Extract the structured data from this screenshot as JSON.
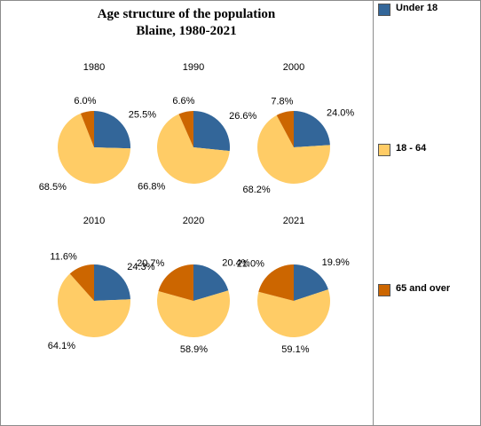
{
  "chart_data": {
    "type": "pie",
    "title": "Age structure of the population",
    "subtitle": "Blaine, 1980-2021",
    "categories": [
      "Under 18",
      "18 - 64",
      "65 and over"
    ],
    "colors": [
      "#336699",
      "#ffcc66",
      "#cc6600"
    ],
    "legend_position": "right",
    "pies": [
      {
        "label": "1980",
        "values": [
          25.5,
          68.5,
          6.0
        ],
        "value_labels": [
          "25.5%",
          "68.5%",
          "6.0%"
        ]
      },
      {
        "label": "1990",
        "values": [
          26.6,
          66.8,
          6.6
        ],
        "value_labels": [
          "26.6%",
          "66.8%",
          "6.6%"
        ]
      },
      {
        "label": "2000",
        "values": [
          24.0,
          68.2,
          7.8
        ],
        "value_labels": [
          "24.0%",
          "68.2%",
          "7.8%"
        ]
      },
      {
        "label": "2010",
        "values": [
          24.3,
          64.1,
          11.6
        ],
        "value_labels": [
          "24.3%",
          "64.1%",
          "11.6%"
        ]
      },
      {
        "label": "2020",
        "values": [
          20.4,
          58.9,
          20.7
        ],
        "value_labels": [
          "20.4%",
          "58.9%",
          "20.7%"
        ]
      },
      {
        "label": "2021",
        "values": [
          19.9,
          59.1,
          21.0
        ],
        "value_labels": [
          "19.9%",
          "59.1%",
          "21.0%"
        ]
      }
    ]
  }
}
